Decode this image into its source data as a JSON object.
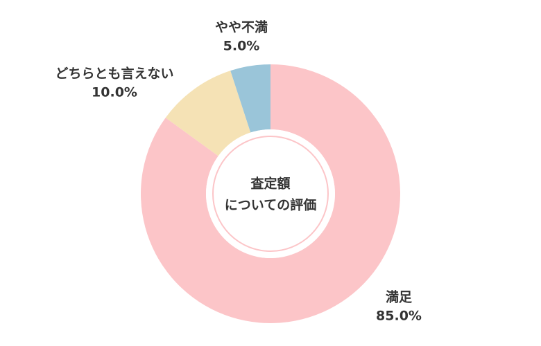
{
  "chart_data": {
    "type": "donut",
    "center_label": [
      "査定額",
      "についての評価"
    ],
    "categories": [
      "満足",
      "どちらとも言えない",
      "やや不満"
    ],
    "values": [
      85,
      10,
      5
    ],
    "value_labels": [
      "85.0%",
      "10.0%",
      "5.0%"
    ],
    "colors": [
      "#fcc5c8",
      "#f5e2b5",
      "#9ac5d9"
    ]
  }
}
